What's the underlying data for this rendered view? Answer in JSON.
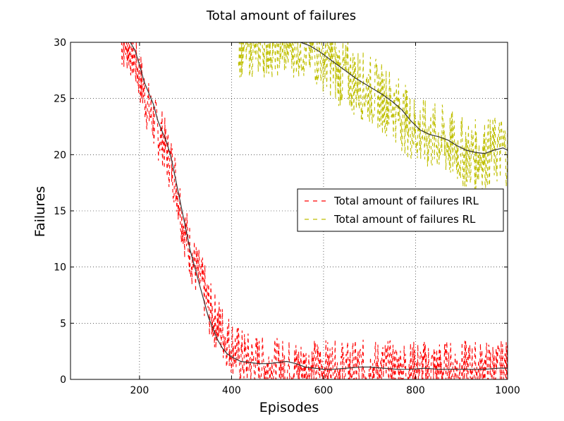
{
  "chart_data": {
    "type": "line",
    "title": "Total amount of failures",
    "xlabel": "Episodes",
    "ylabel": "Failures",
    "xlim": [
      50,
      1000
    ],
    "ylim": [
      0,
      30
    ],
    "xticks": [
      200,
      400,
      600,
      800,
      1000
    ],
    "yticks": [
      0,
      5,
      10,
      15,
      20,
      25,
      30
    ],
    "grid": true,
    "legend_position": "center-right",
    "series": [
      {
        "name": "Total amount of failures IRL",
        "color": "#ff0000",
        "style": "dashed",
        "raw_trend": [
          [
            160,
            30
          ],
          [
            170,
            30
          ],
          [
            180,
            29.5
          ],
          [
            190,
            28.5
          ],
          [
            200,
            27
          ],
          [
            210,
            25.5
          ],
          [
            220,
            24
          ],
          [
            230,
            23
          ],
          [
            240,
            22
          ],
          [
            250,
            21.5
          ],
          [
            260,
            20
          ],
          [
            270,
            19
          ],
          [
            280,
            17.5
          ],
          [
            290,
            15
          ],
          [
            300,
            13
          ],
          [
            310,
            11.5
          ],
          [
            320,
            10
          ],
          [
            330,
            9
          ],
          [
            340,
            8
          ],
          [
            350,
            6.5
          ],
          [
            360,
            5.5
          ],
          [
            370,
            5
          ],
          [
            380,
            4.2
          ],
          [
            390,
            3.5
          ],
          [
            400,
            3
          ],
          [
            410,
            2.5
          ],
          [
            420,
            2
          ],
          [
            430,
            1.8
          ],
          [
            440,
            1.6
          ],
          [
            460,
            1.4
          ],
          [
            480,
            1.2
          ],
          [
            500,
            1.1
          ],
          [
            550,
            1
          ],
          [
            600,
            1
          ],
          [
            650,
            0.9
          ],
          [
            700,
            1
          ],
          [
            750,
            0.9
          ],
          [
            800,
            0.9
          ],
          [
            850,
            0.9
          ],
          [
            900,
            0.9
          ],
          [
            950,
            0.9
          ],
          [
            1000,
            0.9
          ]
        ],
        "noise": 2.6
      },
      {
        "name": "Total amount of failures RL",
        "color": "#bfbf00",
        "style": "dashed",
        "raw_trend": [
          [
            415,
            30
          ],
          [
            450,
            30
          ],
          [
            500,
            30
          ],
          [
            550,
            30
          ],
          [
            570,
            29.5
          ],
          [
            590,
            29
          ],
          [
            610,
            28.5
          ],
          [
            630,
            27.5
          ],
          [
            650,
            27
          ],
          [
            670,
            26.5
          ],
          [
            690,
            26
          ],
          [
            710,
            25.5
          ],
          [
            730,
            25
          ],
          [
            750,
            24.5
          ],
          [
            770,
            23.5
          ],
          [
            790,
            22.5
          ],
          [
            810,
            22
          ],
          [
            830,
            21.5
          ],
          [
            850,
            21.5
          ],
          [
            870,
            21
          ],
          [
            890,
            20.5
          ],
          [
            910,
            20
          ],
          [
            930,
            20
          ],
          [
            950,
            20
          ],
          [
            970,
            20.3
          ],
          [
            990,
            20.5
          ],
          [
            1000,
            20.3
          ]
        ],
        "noise": 3.2
      },
      {
        "name": "",
        "color": "#333333",
        "style": "solid",
        "points": [
          [
            160,
            30
          ],
          [
            180,
            30
          ],
          [
            190,
            29.3
          ],
          [
            200,
            28
          ],
          [
            210,
            26.5
          ],
          [
            220,
            25.5
          ],
          [
            230,
            24.5
          ],
          [
            240,
            23
          ],
          [
            250,
            22
          ],
          [
            260,
            21
          ],
          [
            270,
            19.5
          ],
          [
            280,
            17.5
          ],
          [
            290,
            15.5
          ],
          [
            300,
            13.5
          ],
          [
            310,
            11.5
          ],
          [
            320,
            10
          ],
          [
            330,
            8.5
          ],
          [
            340,
            7
          ],
          [
            350,
            5.5
          ],
          [
            360,
            4.5
          ],
          [
            370,
            3.5
          ],
          [
            380,
            2.8
          ],
          [
            390,
            2.3
          ],
          [
            400,
            2
          ],
          [
            420,
            1.6
          ],
          [
            440,
            1.5
          ],
          [
            460,
            1.4
          ],
          [
            480,
            1.4
          ],
          [
            500,
            1.5
          ],
          [
            520,
            1.6
          ],
          [
            540,
            1.4
          ],
          [
            560,
            1.1
          ],
          [
            580,
            1.0
          ],
          [
            600,
            0.9
          ],
          [
            620,
            0.9
          ],
          [
            650,
            1.0
          ],
          [
            680,
            1.1
          ],
          [
            700,
            1.1
          ],
          [
            730,
            1.0
          ],
          [
            760,
            0.9
          ],
          [
            790,
            0.9
          ],
          [
            820,
            1.0
          ],
          [
            850,
            0.9
          ],
          [
            880,
            0.9
          ],
          [
            910,
            0.9
          ],
          [
            950,
            0.9
          ],
          [
            980,
            1.0
          ],
          [
            1000,
            1.0
          ]
        ]
      },
      {
        "name": "",
        "color": "#333333",
        "style": "solid",
        "points": [
          [
            400,
            30
          ],
          [
            450,
            30
          ],
          [
            500,
            30
          ],
          [
            530,
            30
          ],
          [
            550,
            30
          ],
          [
            570,
            29.7
          ],
          [
            590,
            29.2
          ],
          [
            610,
            28.6
          ],
          [
            630,
            28
          ],
          [
            650,
            27.4
          ],
          [
            670,
            26.8
          ],
          [
            690,
            26.3
          ],
          [
            710,
            25.8
          ],
          [
            730,
            25.3
          ],
          [
            750,
            24.7
          ],
          [
            770,
            24
          ],
          [
            790,
            23
          ],
          [
            810,
            22.2
          ],
          [
            830,
            21.8
          ],
          [
            850,
            21.6
          ],
          [
            870,
            21.3
          ],
          [
            890,
            20.8
          ],
          [
            910,
            20.4
          ],
          [
            930,
            20.2
          ],
          [
            950,
            20.1
          ],
          [
            970,
            20.4
          ],
          [
            990,
            20.6
          ],
          [
            1000,
            20.4
          ]
        ]
      }
    ]
  }
}
